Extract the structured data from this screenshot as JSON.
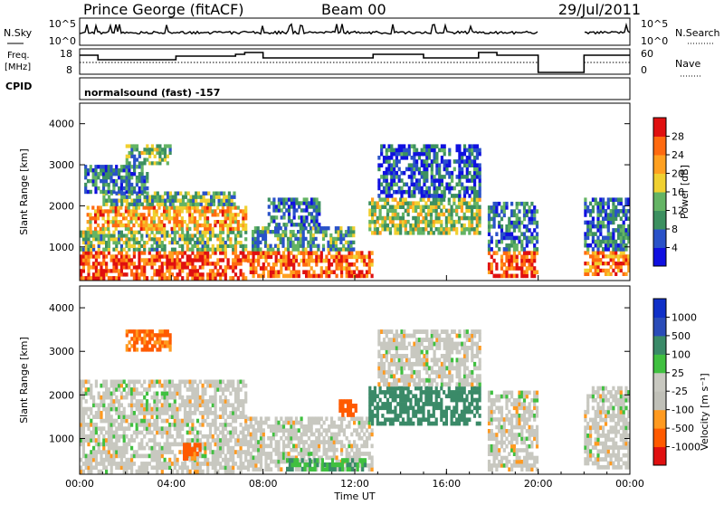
{
  "header": {
    "station": "Prince George (fitACF)",
    "beam": "Beam 00",
    "date": "29/Jul/2011"
  },
  "strip_labels": {
    "nsky": "N.Sky",
    "nsearch": "N.Search",
    "freq_line1": "Freq.",
    "freq_line2": "[MHz]",
    "nave": "Nave",
    "cpid": "CPID",
    "cpid_value": "normalsound (fast) -157"
  },
  "strip_ticks": {
    "noise_left": [
      "10^5",
      "10^0"
    ],
    "noise_right": [
      "10^5",
      "10^0"
    ],
    "freq_left": [
      "18",
      "8"
    ],
    "nave_right": [
      "60",
      "0"
    ]
  },
  "colors": {
    "power_scale": [
      "#1010e0",
      "#2a52c8",
      "#3c9060",
      "#64b464",
      "#f0d030",
      "#ffa020",
      "#ff6a10",
      "#e01010"
    ],
    "velocity_scale": [
      "#e01010",
      "#ff5a00",
      "#ff9a20",
      "#c0c0b8",
      "#c8c8c0",
      "#40c040",
      "#3a8a68",
      "#2a4cb8",
      "#1030c8"
    ]
  },
  "chart_data": [
    {
      "type": "heatmap",
      "name": "power",
      "xlabel": "",
      "ylabel": "Slant Range [km]",
      "x_range_hours": [
        0,
        24
      ],
      "ylim": [
        180,
        4500
      ],
      "y_ticks": [
        "1000",
        "2000",
        "3000",
        "4000"
      ],
      "colorbar": {
        "label": "Power [dB]",
        "range": [
          0,
          32
        ],
        "ticks": [
          "4",
          "8",
          "12",
          "16",
          "20",
          "24",
          "28"
        ]
      },
      "regions": [
        {
          "t0": 0.0,
          "t1": 7.3,
          "r0": 200,
          "r1": 900,
          "value": 27
        },
        {
          "t0": 0.0,
          "t1": 7.3,
          "r0": 900,
          "r1": 1400,
          "value": 14
        },
        {
          "t0": 0.3,
          "t1": 7.3,
          "r0": 1400,
          "r1": 2000,
          "value": 22
        },
        {
          "t0": 1.0,
          "t1": 6.8,
          "r0": 2000,
          "r1": 2350,
          "value": 12
        },
        {
          "t0": 0.2,
          "t1": 3.0,
          "r0": 2300,
          "r1": 3000,
          "value": 9
        },
        {
          "t0": 2.0,
          "t1": 4.0,
          "r0": 3000,
          "r1": 3500,
          "value": 14
        },
        {
          "t0": 7.3,
          "t1": 12.8,
          "r0": 250,
          "r1": 900,
          "value": 26
        },
        {
          "t0": 7.5,
          "t1": 12.0,
          "r0": 900,
          "r1": 1500,
          "value": 11
        },
        {
          "t0": 8.2,
          "t1": 10.5,
          "r0": 1500,
          "r1": 2200,
          "value": 8
        },
        {
          "t0": 12.6,
          "t1": 17.5,
          "r0": 1300,
          "r1": 2200,
          "value": 15
        },
        {
          "t0": 13.0,
          "t1": 17.5,
          "r0": 2200,
          "r1": 3500,
          "value": 6
        },
        {
          "t0": 17.8,
          "t1": 20.0,
          "r0": 250,
          "r1": 900,
          "value": 27
        },
        {
          "t0": 17.8,
          "t1": 20.0,
          "r0": 900,
          "r1": 2100,
          "value": 9
        },
        {
          "t0": 22.0,
          "t1": 24.0,
          "r0": 300,
          "r1": 900,
          "value": 24
        },
        {
          "t0": 22.0,
          "t1": 24.0,
          "r0": 900,
          "r1": 2200,
          "value": 8
        }
      ]
    },
    {
      "type": "heatmap",
      "name": "velocity",
      "xlabel": "Time UT",
      "ylabel": "Slant Range [km]",
      "x_range_hours": [
        0,
        24
      ],
      "x_ticks": [
        "00:00",
        "04:00",
        "08:00",
        "12:00",
        "16:00",
        "20:00",
        "00:00"
      ],
      "ylim": [
        180,
        4500
      ],
      "y_ticks": [
        "1000",
        "2000",
        "3000",
        "4000"
      ],
      "colorbar": {
        "label": "Velocity [m s⁻¹]",
        "ticks": [
          "-1000",
          "-500",
          "-100",
          "-25",
          "25",
          "100",
          "500",
          "1000"
        ]
      },
      "regions": [
        {
          "t0": 0.0,
          "t1": 7.3,
          "r0": 200,
          "r1": 2350,
          "value": 0
        },
        {
          "t0": 2.0,
          "t1": 4.0,
          "r0": 3000,
          "r1": 3500,
          "value": -120
        },
        {
          "t0": 4.5,
          "t1": 5.3,
          "r0": 500,
          "r1": 900,
          "value": -150
        },
        {
          "t0": 7.3,
          "t1": 12.8,
          "r0": 250,
          "r1": 1500,
          "value": 0
        },
        {
          "t0": 9.0,
          "t1": 12.5,
          "r0": 250,
          "r1": 550,
          "value": 90
        },
        {
          "t0": 11.3,
          "t1": 12.1,
          "r0": 1500,
          "r1": 1900,
          "value": -200
        },
        {
          "t0": 12.6,
          "t1": 17.5,
          "r0": 1300,
          "r1": 2200,
          "value": 300
        },
        {
          "t0": 13.0,
          "t1": 17.5,
          "r0": 2200,
          "r1": 3500,
          "value": 0
        },
        {
          "t0": 17.8,
          "t1": 20.0,
          "r0": 250,
          "r1": 2100,
          "value": 0
        },
        {
          "t0": 22.0,
          "t1": 24.0,
          "r0": 300,
          "r1": 2200,
          "value": 0
        }
      ]
    }
  ]
}
